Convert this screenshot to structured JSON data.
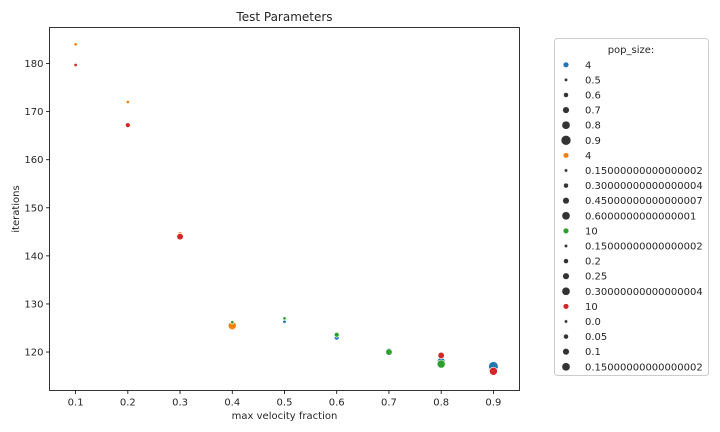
{
  "chart_data": {
    "type": "scatter",
    "title": "Test Parameters",
    "xlabel": "max velocity fraction",
    "ylabel": "iterations",
    "xlim": [
      0.05,
      0.95
    ],
    "ylim": [
      112,
      187.5
    ],
    "xticks": [
      "0.1",
      "0.2",
      "0.3",
      "0.4",
      "0.5",
      "0.6",
      "0.7",
      "0.8",
      "0.9"
    ],
    "xtick_values": [
      0.1,
      0.2,
      0.3,
      0.4,
      0.5,
      0.6,
      0.7,
      0.8,
      0.9
    ],
    "yticks": [
      "120",
      "130",
      "140",
      "150",
      "160",
      "170",
      "180"
    ],
    "ytick_values": [
      120,
      130,
      140,
      150,
      160,
      170,
      180
    ],
    "grid": false,
    "legend_placement": "outside-right",
    "legend": {
      "title": "pop_size:",
      "entries": [
        {
          "label": "4",
          "kind": "hue",
          "color": "#1f77b4"
        },
        {
          "label": "0.5",
          "kind": "size",
          "size": 1
        },
        {
          "label": "0.6",
          "kind": "size",
          "size": 2
        },
        {
          "label": "0.7",
          "kind": "size",
          "size": 3
        },
        {
          "label": "0.8",
          "kind": "size",
          "size": 4
        },
        {
          "label": "0.9",
          "kind": "size",
          "size": 5
        },
        {
          "label": "4",
          "kind": "hue",
          "color": "#ff7f0e"
        },
        {
          "label": "0.15000000000000002",
          "kind": "size",
          "size": 1
        },
        {
          "label": "0.30000000000000004",
          "kind": "size",
          "size": 2
        },
        {
          "label": "0.45000000000000007",
          "kind": "size",
          "size": 3
        },
        {
          "label": "0.6000000000000001",
          "kind": "size",
          "size": 4
        },
        {
          "label": "10",
          "kind": "hue",
          "color": "#2ca02c"
        },
        {
          "label": "0.15000000000000002",
          "kind": "size",
          "size": 1
        },
        {
          "label": "0.2",
          "kind": "size",
          "size": 2
        },
        {
          "label": "0.25",
          "kind": "size",
          "size": 3
        },
        {
          "label": "0.30000000000000004",
          "kind": "size",
          "size": 4
        },
        {
          "label": "10",
          "kind": "hue",
          "color": "#d62728"
        },
        {
          "label": "0.0",
          "kind": "size",
          "size": 1
        },
        {
          "label": "0.05",
          "kind": "size",
          "size": 2
        },
        {
          "label": "0.1",
          "kind": "size",
          "size": 3
        },
        {
          "label": "0.15000000000000002",
          "kind": "size",
          "size": 4
        }
      ]
    },
    "series": [
      {
        "color": "#1f77b4",
        "points": [
          {
            "x": 0.5,
            "y": 126.3,
            "size": 1
          },
          {
            "x": 0.6,
            "y": 123.0,
            "size": 2
          },
          {
            "x": 0.7,
            "y": 120.2,
            "size": 3
          },
          {
            "x": 0.8,
            "y": 118.0,
            "size": 4
          },
          {
            "x": 0.9,
            "y": 117.0,
            "size": 5
          }
        ]
      },
      {
        "color": "#ff7f0e",
        "points": [
          {
            "x": 0.1,
            "y": 184.0,
            "size": 1
          },
          {
            "x": 0.2,
            "y": 172.0,
            "size": 1
          },
          {
            "x": 0.3,
            "y": 144.5,
            "size": 2
          },
          {
            "x": 0.4,
            "y": 125.5,
            "size": 4
          }
        ]
      },
      {
        "color": "#2ca02c",
        "points": [
          {
            "x": 0.4,
            "y": 126.2,
            "size": 1
          },
          {
            "x": 0.5,
            "y": 127.0,
            "size": 1
          },
          {
            "x": 0.6,
            "y": 123.6,
            "size": 2
          },
          {
            "x": 0.7,
            "y": 120.0,
            "size": 3
          },
          {
            "x": 0.8,
            "y": 117.5,
            "size": 4
          }
        ]
      },
      {
        "color": "#d62728",
        "points": [
          {
            "x": 0.1,
            "y": 179.7,
            "size": 1
          },
          {
            "x": 0.2,
            "y": 167.2,
            "size": 2
          },
          {
            "x": 0.3,
            "y": 144.0,
            "size": 3
          },
          {
            "x": 0.8,
            "y": 119.3,
            "size": 3
          },
          {
            "x": 0.9,
            "y": 116.0,
            "size": 4
          }
        ]
      }
    ]
  }
}
